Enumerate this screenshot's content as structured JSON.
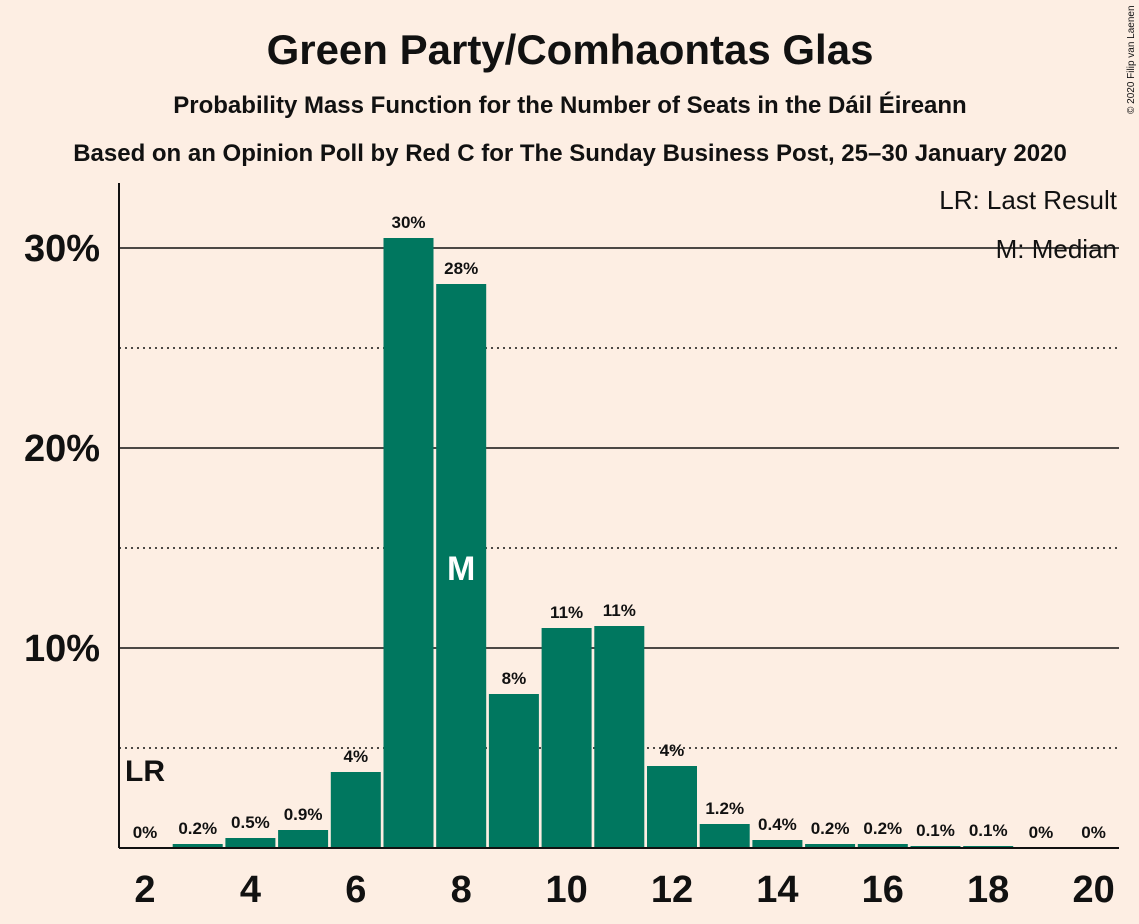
{
  "chart_data": {
    "type": "bar",
    "title": "Green Party/Comhaontas Glas",
    "subtitle": "Probability Mass Function for the Number of Seats in the Dáil Éireann",
    "subtitle2": "Based on an Opinion Poll by Red C for The Sunday Business Post, 25–30 January 2020",
    "copyright": "© 2020 Filip van Laenen",
    "legend": {
      "lr": "LR: Last Result",
      "median": "M: Median",
      "placement": "top-right"
    },
    "x": [
      2,
      3,
      4,
      5,
      6,
      7,
      8,
      9,
      10,
      11,
      12,
      13,
      14,
      15,
      16,
      17,
      18,
      19,
      20
    ],
    "values": [
      0,
      0.2,
      0.5,
      0.9,
      3.8,
      30.5,
      28.2,
      7.7,
      11.0,
      11.1,
      4.1,
      1.2,
      0.4,
      0.2,
      0.2,
      0.1,
      0.1,
      0,
      0
    ],
    "value_labels": [
      "0%",
      "0.2%",
      "0.5%",
      "0.9%",
      "4%",
      "30%",
      "28%",
      "8%",
      "11%",
      "11%",
      "4%",
      "1.2%",
      "0.4%",
      "0.2%",
      "0.2%",
      "0.1%",
      "0.1%",
      "0%",
      "0%"
    ],
    "x_ticks": [
      2,
      4,
      6,
      8,
      10,
      12,
      14,
      16,
      18,
      20
    ],
    "y_ticks_major": [
      10,
      20,
      30
    ],
    "y_ticks_major_labels": [
      "10%",
      "20%",
      "30%"
    ],
    "y_ticks_minor": [
      5,
      15,
      25
    ],
    "ylim": [
      0,
      33
    ],
    "last_result_seat": 2,
    "last_result_marker": "LR",
    "median_seat": 8,
    "median_marker": "M",
    "colors": {
      "bar": "#00775f",
      "background": "#fdeee3",
      "text": "#111111"
    }
  }
}
